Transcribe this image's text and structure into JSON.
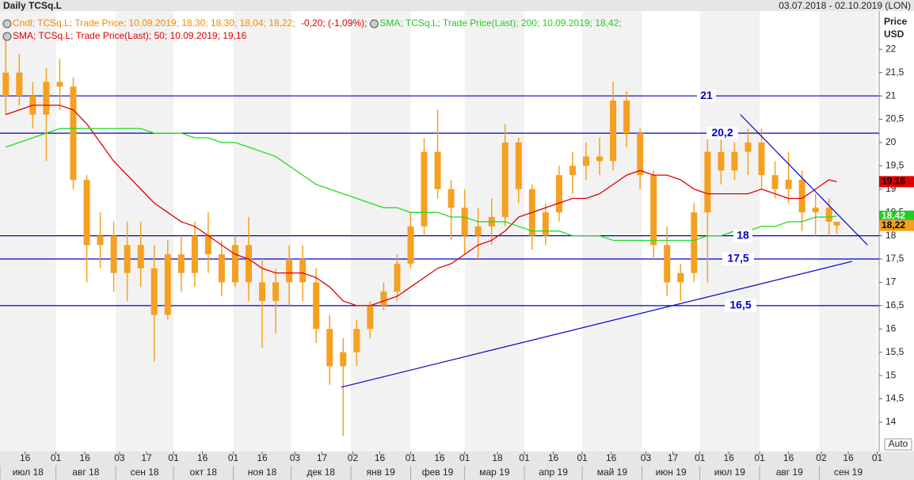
{
  "chart_data": {
    "type": "candlestick",
    "title": "Daily TCSq.L",
    "subtitle": "03.07.2018 - 02.10.2019 (LON)",
    "y_label": [
      "Price",
      "USD"
    ],
    "auto_button": "Auto",
    "legend": [
      {
        "line": 0,
        "icon": true,
        "text": "Cndl; TCSq.L; Trade Price; 10.09.2019; 18,30; 18,30; 18,04; 18,22;",
        "color": "#f08c00"
      },
      {
        "line": 0,
        "icon": false,
        "text": " -0,20; (-1,09%);",
        "color": "#e00000"
      },
      {
        "line": 0,
        "icon": true,
        "text": "SMA; TCSq.L; Trade Price(Last); 200; 10.09.2019; 18,42;",
        "color": "#22cc22"
      },
      {
        "line": 1,
        "icon": true,
        "text": "SMA; TCSq.L; Trade Price(Last); 50; 10.09.2019; 19,16",
        "color": "#e00000"
      }
    ],
    "xlim": [
      "2018-07-03",
      "2019-10-02"
    ],
    "ylim": [
      13.37,
      22.82
    ],
    "yticks": [
      14,
      {
        "value": 14.5,
        "label": "14,5"
      },
      15,
      {
        "value": 15.5,
        "label": "15,5"
      },
      16,
      {
        "value": 16.5,
        "label": "16,5"
      },
      17,
      {
        "value": 17.5,
        "label": "17,5"
      },
      18,
      {
        "value": 18.5,
        "label": "18,5"
      },
      19,
      {
        "value": 19.5,
        "label": "19,5"
      },
      20,
      {
        "value": 20.5,
        "label": "20,5"
      },
      21,
      {
        "value": 21.5,
        "label": "21,5"
      },
      22
    ],
    "xticks": [
      {
        "value": "2018-07-16",
        "label": "16"
      },
      {
        "value": "2018-08-01",
        "label": "01"
      },
      {
        "value": "2018-08-16",
        "label": "16"
      },
      {
        "value": "2018-09-03",
        "label": "03"
      },
      {
        "value": "2018-09-17",
        "label": "17"
      },
      {
        "value": "2018-10-01",
        "label": "01"
      },
      {
        "value": "2018-10-16",
        "label": "16"
      },
      {
        "value": "2018-11-01",
        "label": "01"
      },
      {
        "value": "2018-11-16",
        "label": "16"
      },
      {
        "value": "2018-12-03",
        "label": "03"
      },
      {
        "value": "2018-12-17",
        "label": "17"
      },
      {
        "value": "2019-01-02",
        "label": "02"
      },
      {
        "value": "2019-01-16",
        "label": "16"
      },
      {
        "value": "2019-02-01",
        "label": "01"
      },
      {
        "value": "2019-02-16",
        "label": "16"
      },
      {
        "value": "2019-03-01",
        "label": "01"
      },
      {
        "value": "2019-03-18",
        "label": "18"
      },
      {
        "value": "2019-04-01",
        "label": "01"
      },
      {
        "value": "2019-04-16",
        "label": "16"
      },
      {
        "value": "2019-05-01",
        "label": "01"
      },
      {
        "value": "2019-05-16",
        "label": "16"
      },
      {
        "value": "2019-06-03",
        "label": "03"
      },
      {
        "value": "2019-06-17",
        "label": "17"
      },
      {
        "value": "2019-07-01",
        "label": "01"
      },
      {
        "value": "2019-07-16",
        "label": "16"
      },
      {
        "value": "2019-08-01",
        "label": "01"
      },
      {
        "value": "2019-08-16",
        "label": "16"
      },
      {
        "value": "2019-09-02",
        "label": "02"
      },
      {
        "value": "2019-09-16",
        "label": "16"
      },
      {
        "value": "2019-10-01",
        "label": "01"
      }
    ],
    "months": [
      {
        "value": "2018-07",
        "label": "июл 18"
      },
      {
        "value": "2018-08",
        "label": "авг 18"
      },
      {
        "value": "2018-09",
        "label": "сен 18"
      },
      {
        "value": "2018-10",
        "label": "окт 18"
      },
      {
        "value": "2018-11",
        "label": "ноя 18"
      },
      {
        "value": "2018-12",
        "label": "дек 18"
      },
      {
        "value": "2019-01",
        "label": "янв 19"
      },
      {
        "value": "2019-02",
        "label": "фев 19"
      },
      {
        "value": "2019-03",
        "label": "мар 19"
      },
      {
        "value": "2019-04",
        "label": "апр 19"
      },
      {
        "value": "2019-05",
        "label": "май 19"
      },
      {
        "value": "2019-06",
        "label": "июн 19"
      },
      {
        "value": "2019-07",
        "label": "июл 19"
      },
      {
        "value": "2019-08",
        "label": "авг 19"
      },
      {
        "value": "2019-09",
        "label": "сен 19"
      }
    ],
    "color": "#f5a020",
    "x": [
      "2018-07-06",
      "2018-07-13",
      "2018-07-20",
      "2018-07-27",
      "2018-08-03",
      "2018-08-10",
      "2018-08-17",
      "2018-08-24",
      "2018-08-31",
      "2018-09-07",
      "2018-09-14",
      "2018-09-21",
      "2018-09-28",
      "2018-10-05",
      "2018-10-12",
      "2018-10-19",
      "2018-10-26",
      "2018-11-02",
      "2018-11-09",
      "2018-11-16",
      "2018-11-23",
      "2018-11-30",
      "2018-12-07",
      "2018-12-14",
      "2018-12-21",
      "2018-12-28",
      "2019-01-04",
      "2019-01-11",
      "2019-01-18",
      "2019-01-25",
      "2019-02-01",
      "2019-02-08",
      "2019-02-15",
      "2019-02-22",
      "2019-03-01",
      "2019-03-08",
      "2019-03-15",
      "2019-03-22",
      "2019-03-29",
      "2019-04-05",
      "2019-04-12",
      "2019-04-19",
      "2019-04-26",
      "2019-05-03",
      "2019-05-10",
      "2019-05-17",
      "2019-05-24",
      "2019-05-31",
      "2019-06-07",
      "2019-06-14",
      "2019-06-21",
      "2019-06-28",
      "2019-07-05",
      "2019-07-12",
      "2019-07-19",
      "2019-07-26",
      "2019-08-02",
      "2019-08-09",
      "2019-08-16",
      "2019-08-23",
      "2019-08-30",
      "2019-09-06",
      "2019-09-10"
    ],
    "open": [
      21.0,
      21.5,
      21.0,
      20.6,
      21.3,
      21.2,
      19.2,
      17.8,
      18.0,
      17.2,
      17.8,
      17.3,
      16.3,
      17.6,
      17.2,
      18.0,
      17.6,
      17.0,
      17.8,
      17.0,
      16.6,
      17.0,
      17.5,
      17.0,
      16.0,
      15.2,
      15.5,
      16.0,
      16.5,
      16.8,
      17.4,
      18.2,
      19.8,
      19.0,
      18.6,
      18.0,
      18.2,
      18.4,
      20.0,
      19.0,
      18.0,
      18.5,
      19.3,
      19.5,
      19.7,
      19.6,
      20.9,
      20.2,
      19.3,
      17.8,
      17.0,
      17.2,
      18.5,
      19.8,
      19.4,
      19.8,
      20.0,
      19.3,
      19.0,
      19.2,
      18.5,
      18.6,
      18.3
    ],
    "high": [
      22.2,
      21.9,
      21.3,
      21.6,
      21.8,
      21.4,
      19.3,
      18.5,
      18.3,
      18.3,
      18.3,
      17.8,
      17.9,
      18.0,
      18.3,
      18.5,
      17.9,
      18.0,
      18.4,
      17.5,
      17.3,
      17.8,
      17.8,
      17.3,
      16.3,
      15.8,
      16.2,
      16.6,
      17.0,
      17.6,
      18.5,
      20.1,
      20.7,
      19.2,
      19.0,
      18.6,
      18.8,
      20.4,
      20.1,
      19.1,
      18.7,
      19.5,
      19.8,
      20.0,
      20.1,
      21.3,
      21.1,
      20.3,
      19.4,
      18.2,
      17.4,
      18.7,
      20.1,
      20.1,
      20.0,
      20.3,
      20.3,
      19.6,
      19.8,
      19.4,
      18.9,
      18.8,
      18.3
    ],
    "low": [
      20.6,
      20.8,
      20.3,
      19.6,
      20.7,
      19.0,
      17.0,
      17.3,
      16.8,
      16.6,
      16.9,
      15.3,
      16.2,
      16.8,
      16.9,
      17.2,
      16.7,
      16.9,
      16.6,
      15.6,
      15.9,
      16.5,
      16.6,
      15.7,
      14.8,
      13.7,
      15.2,
      15.8,
      16.4,
      16.6,
      17.3,
      18.0,
      18.8,
      17.9,
      17.6,
      17.5,
      17.8,
      18.2,
      18.7,
      17.7,
      17.8,
      18.3,
      18.9,
      19.2,
      19.3,
      19.4,
      19.9,
      19.0,
      17.5,
      16.7,
      16.6,
      17.0,
      17.0,
      19.1,
      19.2,
      19.3,
      19.0,
      18.8,
      18.7,
      18.1,
      18.0,
      18.0,
      18.04
    ],
    "close": [
      21.5,
      21.0,
      20.6,
      21.3,
      21.2,
      19.2,
      17.8,
      18.0,
      17.2,
      17.8,
      17.3,
      16.3,
      17.6,
      17.2,
      18.0,
      17.6,
      17.0,
      17.8,
      17.0,
      16.6,
      17.0,
      17.5,
      17.0,
      16.0,
      15.2,
      15.5,
      16.0,
      16.5,
      16.8,
      17.4,
      18.2,
      19.8,
      19.0,
      18.6,
      18.0,
      18.2,
      18.4,
      20.0,
      19.0,
      18.0,
      18.5,
      19.3,
      19.5,
      19.7,
      19.6,
      20.9,
      20.2,
      19.3,
      17.8,
      17.0,
      17.2,
      18.5,
      19.8,
      19.4,
      19.8,
      20.0,
      19.3,
      19.0,
      19.2,
      18.5,
      18.6,
      18.3,
      18.22
    ],
    "series": [
      {
        "name": "SMA 50",
        "color": "#e00000",
        "values": [
          20.6,
          20.7,
          20.8,
          20.8,
          20.8,
          20.7,
          20.4,
          20.0,
          19.6,
          19.3,
          19.0,
          18.7,
          18.5,
          18.3,
          18.2,
          18.0,
          17.8,
          17.6,
          17.5,
          17.3,
          17.2,
          17.2,
          17.2,
          17.1,
          16.9,
          16.6,
          16.5,
          16.5,
          16.6,
          16.7,
          16.9,
          17.1,
          17.3,
          17.4,
          17.6,
          17.8,
          17.9,
          18.1,
          18.4,
          18.5,
          18.6,
          18.7,
          18.8,
          18.8,
          18.9,
          19.1,
          19.3,
          19.4,
          19.3,
          19.3,
          19.2,
          19.0,
          18.9,
          18.9,
          18.9,
          18.9,
          19.0,
          18.9,
          18.8,
          18.8,
          19.0,
          19.2,
          19.16
        ]
      },
      {
        "name": "SMA 200",
        "color": "#22dd22",
        "values": [
          19.9,
          20.0,
          20.1,
          20.2,
          20.3,
          20.3,
          20.3,
          20.3,
          20.3,
          20.3,
          20.3,
          20.2,
          20.2,
          20.2,
          20.1,
          20.1,
          20.0,
          20.0,
          19.9,
          19.8,
          19.7,
          19.5,
          19.3,
          19.1,
          19.0,
          18.9,
          18.8,
          18.7,
          18.6,
          18.6,
          18.5,
          18.5,
          18.5,
          18.4,
          18.4,
          18.3,
          18.3,
          18.3,
          18.2,
          18.1,
          18.1,
          18.1,
          18.0,
          18.0,
          18.0,
          17.9,
          17.9,
          17.9,
          17.9,
          17.9,
          17.9,
          17.9,
          18.0,
          18.0,
          18.1,
          18.1,
          18.2,
          18.2,
          18.3,
          18.3,
          18.4,
          18.4,
          18.42
        ]
      }
    ],
    "levels": [
      {
        "value": 21,
        "label": "21"
      },
      {
        "value": 20.2,
        "label": "20,2"
      },
      {
        "value": 18,
        "label": "18"
      },
      {
        "value": 17.5,
        "label": "17,5"
      },
      {
        "value": 16.5,
        "label": "16,5"
      }
    ],
    "level_color": "#0000cc",
    "trendlines": [
      {
        "x": [
          "2018-12-27",
          "2019-09-18"
        ],
        "y": [
          14.75,
          17.45
        ]
      },
      {
        "x": [
          "2019-07-22",
          "2019-09-26"
        ],
        "y": [
          20.6,
          17.8
        ]
      }
    ],
    "badges": [
      {
        "value": 19.16,
        "label": "19,16",
        "color": "#e00000"
      },
      {
        "value": 18.42,
        "label": "18,42",
        "color": "#22cc22"
      },
      {
        "value": 18.22,
        "label": "18,22",
        "color": "#f5a020"
      }
    ]
  }
}
